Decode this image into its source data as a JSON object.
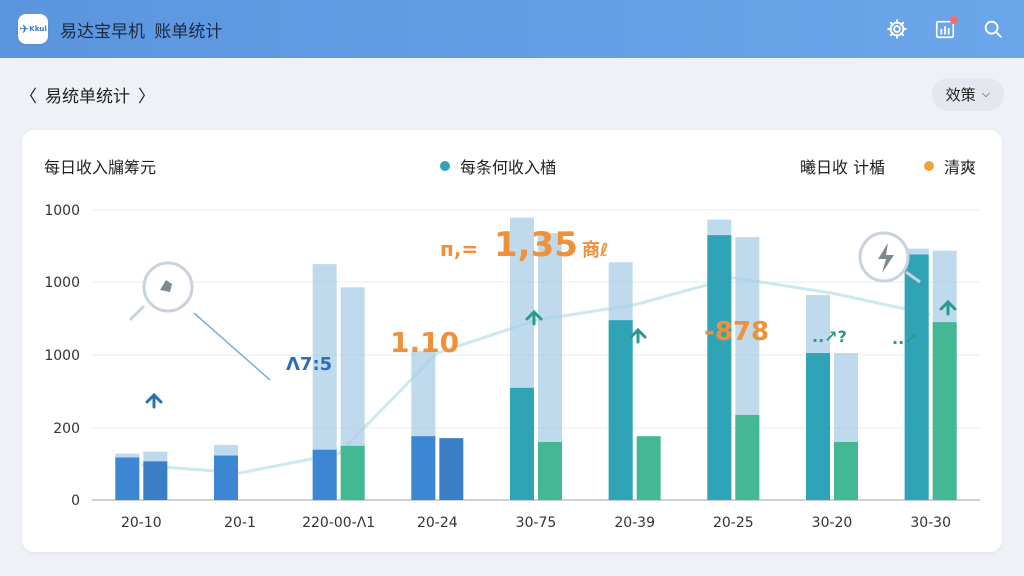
{
  "topbar": {
    "logo_text": "Kkul",
    "app_name": "易达宝早机",
    "page_name": "账单统计",
    "icons": [
      "gear-icon",
      "bar-chart-icon",
      "search-icon"
    ],
    "notification_color": "#ff6b6b"
  },
  "subheader": {
    "back_label": "易统单统计",
    "filter_label": "效策"
  },
  "card": {
    "title": "每日收入牖筹元",
    "legend_income": "每条何收入楢",
    "legend_right_label": "曦日收 计楯",
    "legend_right": "清爽"
  },
  "colors": {
    "accent": "#5b95de",
    "blue_bar": "#3d86d4",
    "teal_bar": "#2fa4b6",
    "green_bar": "#44b894",
    "ghost_bar": "#a8cde6",
    "orange": "#f0913a",
    "teal_dot": "#2fa4b6",
    "orange_dot": "#f0a23a"
  },
  "chart_data": {
    "type": "bar",
    "ytick_labels": [
      "0",
      "200",
      "1000",
      "1000",
      "1000"
    ],
    "categories": [
      "20-10",
      "20-1",
      "220-00-Λ1",
      "20-24",
      "30-75",
      "20-39",
      "20-25",
      "30-20",
      "30-30"
    ],
    "series": [
      {
        "values": [
          220,
          230,
          260,
          330,
          580,
          930,
          1370,
          760,
          1270
        ]
      },
      {
        "values": [
          200,
          null,
          280,
          320,
          300,
          330,
          440,
          300,
          920
        ]
      }
    ],
    "ghost_values": [
      240,
      285,
      1220,
      770,
      1460,
      1230,
      1450,
      1060,
      1300
    ],
    "ghost_values_b": [
      250,
      null,
      1100,
      null,
      1380,
      null,
      1360,
      760,
      1290
    ],
    "trend_line": [
      180,
      140,
      240,
      760,
      930,
      1010,
      1150,
      1070,
      960
    ],
    "annotations": {
      "headline": "1,35",
      "headline_prefix": "п,=",
      "headline_suffix": "商ℓ",
      "label_1": "1.10",
      "label_2": "Ʌ7:5",
      "label_3": "-878",
      "label_4": "..↗?",
      "label_5": "..↗",
      "pointer_icon_1": "hand-pointer-icon",
      "pointer_icon_2": "lightning-icon"
    }
  }
}
